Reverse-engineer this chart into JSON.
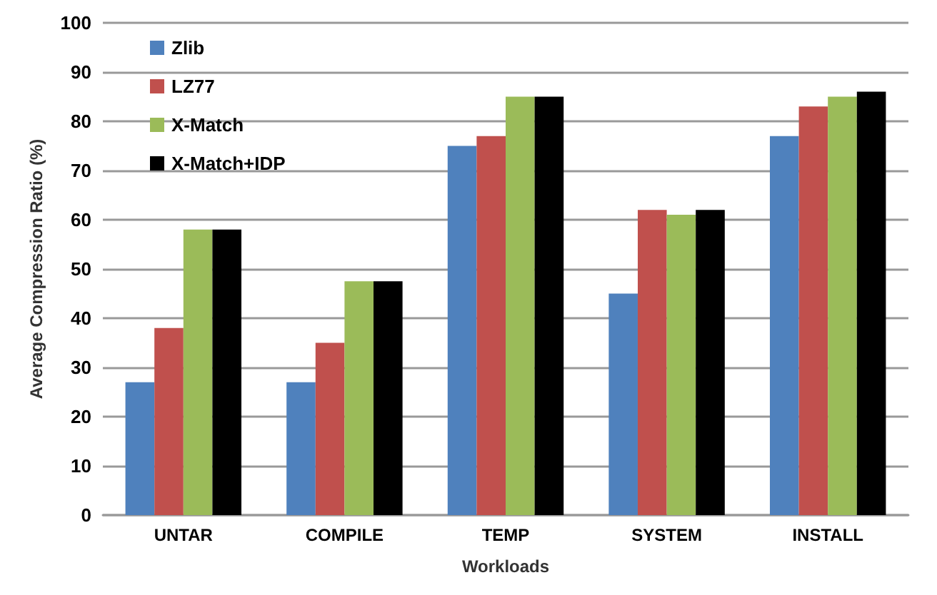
{
  "chart_data": {
    "type": "bar",
    "xlabel": "Workloads",
    "ylabel": "Average Compression Ratio (%)",
    "categories": [
      "UNTAR",
      "COMPILE",
      "TEMP",
      "SYSTEM",
      "INSTALL"
    ],
    "series": [
      {
        "name": "Zlib",
        "color": "#4f81bd",
        "values": [
          27,
          27,
          75,
          45,
          77
        ]
      },
      {
        "name": "LZ77",
        "color": "#c0504d",
        "values": [
          38,
          35,
          77,
          62,
          83
        ]
      },
      {
        "name": "X-Match",
        "color": "#9bbb59",
        "values": [
          58,
          47.5,
          85,
          61,
          85
        ]
      },
      {
        "name": "X-Match+IDP",
        "color": "#000000",
        "values": [
          58,
          47.5,
          85,
          62,
          86
        ]
      }
    ],
    "ylim": [
      0,
      100
    ],
    "yticks": [
      0,
      10,
      20,
      30,
      40,
      50,
      60,
      70,
      80,
      90,
      100
    ],
    "grid": "y",
    "legend": "top left"
  }
}
